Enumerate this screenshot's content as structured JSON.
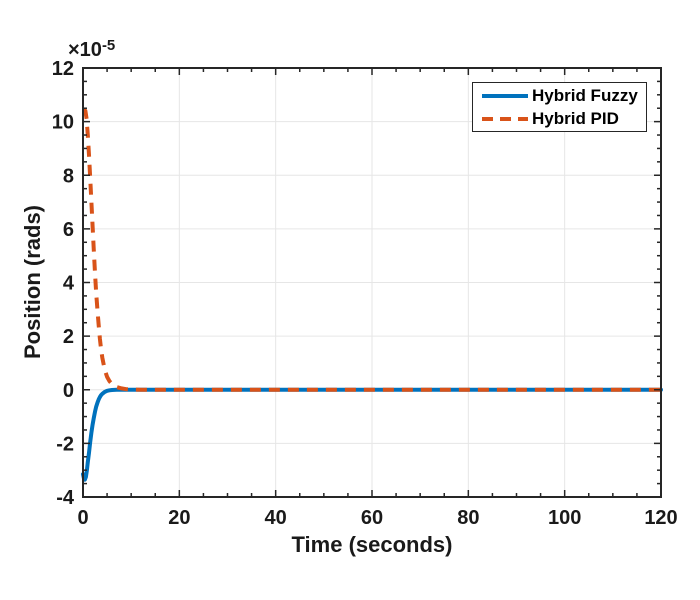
{
  "figure": {
    "background": "#ffffff",
    "axis_color": "#262626",
    "grid_color": "#e6e6e6",
    "offset_base": "×10",
    "offset_exponent": "-5"
  },
  "legend": {
    "position": "northeast",
    "entries": [
      {
        "label": "Hybrid Fuzzy",
        "color": "#0072BD",
        "line_style": "solid"
      },
      {
        "label": "Hybrid PID",
        "color": "#D95319",
        "line_style": "dashed"
      }
    ]
  },
  "chart_data": {
    "type": "line",
    "title": "",
    "xlabel": "Time (seconds)",
    "ylabel": "Position (rads)",
    "y_axis_multiplier": "1e-5",
    "xlim": [
      0,
      120
    ],
    "ylim": [
      -4,
      12
    ],
    "xticks": [
      0,
      20,
      40,
      60,
      80,
      100,
      120
    ],
    "xtick_labels": [
      "0",
      "20",
      "40",
      "60",
      "80",
      "100",
      "120"
    ],
    "yticks": [
      -4,
      -2,
      0,
      2,
      4,
      6,
      8,
      10,
      12
    ],
    "ytick_labels": [
      "-4",
      "-2",
      "0",
      "2",
      "4",
      "6",
      "8",
      "10",
      "12"
    ],
    "minor_ticks_per_major": 3,
    "grid": true,
    "legend_position": "northeast",
    "series": [
      {
        "name": "Hybrid Fuzzy",
        "color": "#0072BD",
        "style": "solid",
        "line_width": 4,
        "points": [
          [
            0,
            -3.15
          ],
          [
            0.2,
            -3.32
          ],
          [
            0.4,
            -3.35
          ],
          [
            0.6,
            -3.25
          ],
          [
            0.8,
            -3.0
          ],
          [
            1,
            -2.7
          ],
          [
            1.25,
            -2.35
          ],
          [
            1.5,
            -1.95
          ],
          [
            1.75,
            -1.6
          ],
          [
            2,
            -1.3
          ],
          [
            2.25,
            -1.05
          ],
          [
            2.5,
            -0.82
          ],
          [
            2.75,
            -0.63
          ],
          [
            3,
            -0.48
          ],
          [
            3.25,
            -0.36
          ],
          [
            3.5,
            -0.27
          ],
          [
            3.75,
            -0.2
          ],
          [
            4,
            -0.15
          ],
          [
            4.5,
            -0.08
          ],
          [
            5,
            -0.04
          ],
          [
            5.5,
            -0.02
          ],
          [
            6,
            -0.01
          ],
          [
            7,
            0
          ],
          [
            8,
            0
          ],
          [
            10,
            0
          ],
          [
            15,
            0
          ],
          [
            20,
            0
          ],
          [
            30,
            0
          ],
          [
            40,
            0
          ],
          [
            50,
            0
          ],
          [
            60,
            0
          ],
          [
            70,
            0
          ],
          [
            80,
            0
          ],
          [
            90,
            0
          ],
          [
            100,
            0
          ],
          [
            110,
            0
          ],
          [
            120,
            0
          ]
        ]
      },
      {
        "name": "Hybrid PID",
        "color": "#D95319",
        "style": "dashed",
        "line_width": 4,
        "points": [
          [
            0,
            10.45
          ],
          [
            0.25,
            10.45
          ],
          [
            0.5,
            10.4
          ],
          [
            0.75,
            10.1
          ],
          [
            1,
            9.5
          ],
          [
            1.25,
            8.75
          ],
          [
            1.5,
            7.9
          ],
          [
            1.75,
            7.0
          ],
          [
            2,
            6.1
          ],
          [
            2.25,
            5.2
          ],
          [
            2.5,
            4.35
          ],
          [
            2.75,
            3.6
          ],
          [
            3,
            2.95
          ],
          [
            3.25,
            2.4
          ],
          [
            3.5,
            1.9
          ],
          [
            3.75,
            1.5
          ],
          [
            4,
            1.2
          ],
          [
            4.5,
            0.75
          ],
          [
            5,
            0.48
          ],
          [
            5.5,
            0.32
          ],
          [
            6,
            0.22
          ],
          [
            6.5,
            0.15
          ],
          [
            7,
            0.1
          ],
          [
            8,
            0.05
          ],
          [
            9,
            0.02
          ],
          [
            10,
            0.01
          ],
          [
            12,
            0
          ],
          [
            15,
            0
          ],
          [
            20,
            0
          ],
          [
            30,
            0
          ],
          [
            40,
            0
          ],
          [
            50,
            0
          ],
          [
            60,
            0
          ],
          [
            70,
            0
          ],
          [
            80,
            0
          ],
          [
            90,
            0
          ],
          [
            100,
            0
          ],
          [
            110,
            0
          ],
          [
            120,
            0
          ]
        ]
      }
    ]
  }
}
